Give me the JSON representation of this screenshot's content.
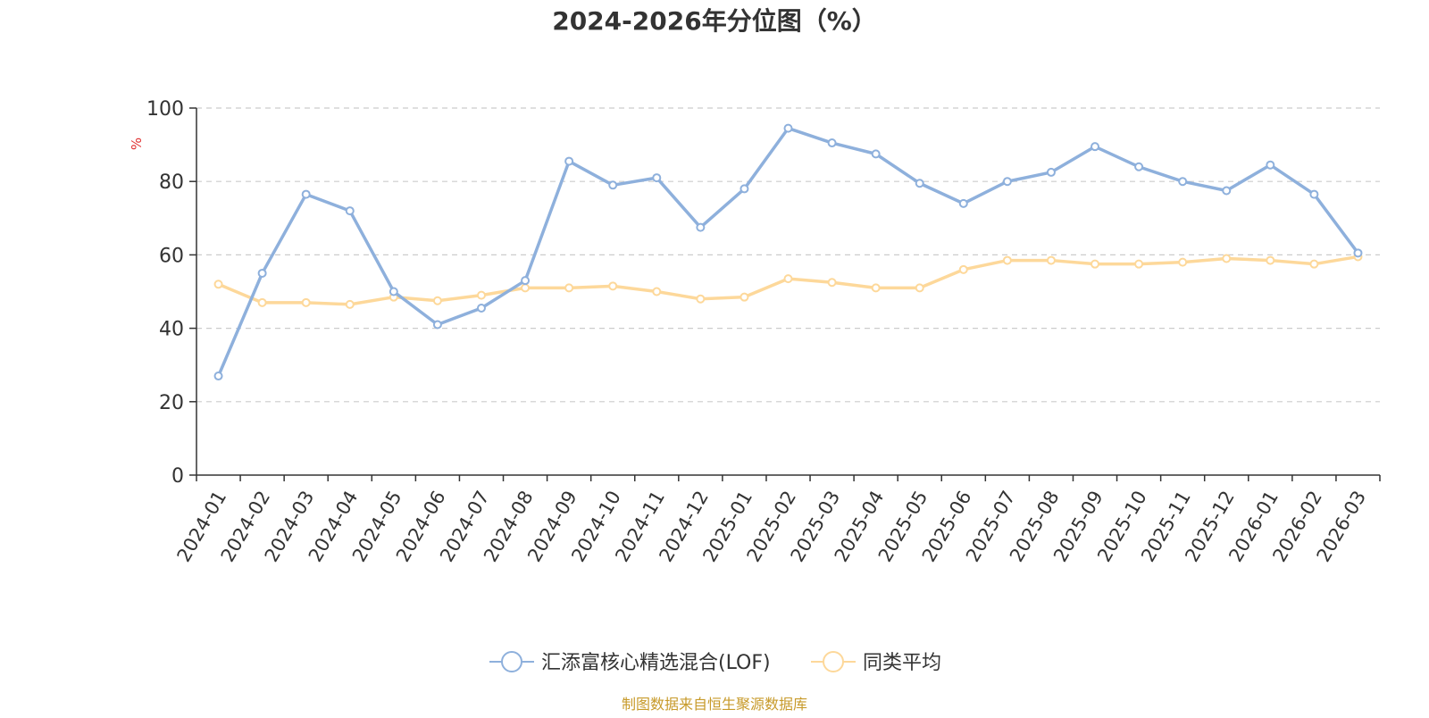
{
  "chart_data": {
    "type": "line",
    "title": "2024-2026年分位图（%）",
    "ylabel": "%",
    "ylim": [
      0,
      100
    ],
    "yticks": [
      0,
      20,
      40,
      60,
      80,
      100
    ],
    "grid": true,
    "legend_position": "bottom",
    "categories": [
      "2024-01",
      "2024-02",
      "2024-03",
      "2024-04",
      "2024-05",
      "2024-06",
      "2024-07",
      "2024-08",
      "2024-09",
      "2024-10",
      "2024-11",
      "2024-12",
      "2025-01",
      "2025-02",
      "2025-03",
      "2025-04",
      "2025-05",
      "2025-06",
      "2025-07",
      "2025-08",
      "2025-09",
      "2025-10",
      "2025-11",
      "2025-12",
      "2026-01",
      "2026-02",
      "2026-03"
    ],
    "series": [
      {
        "name": "汇添富核心精选混合(LOF)",
        "color": "#8eb0dc",
        "values": [
          27.0,
          55.0,
          76.5,
          72.0,
          50.0,
          41.0,
          45.5,
          53.0,
          85.5,
          79.0,
          81.0,
          67.5,
          78.0,
          94.5,
          90.5,
          87.5,
          79.5,
          74.0,
          80.0,
          82.5,
          89.5,
          84.0,
          80.0,
          77.5,
          84.5,
          76.5,
          60.5
        ]
      },
      {
        "name": "同类平均",
        "color": "#fdd89a",
        "values": [
          52.0,
          47.0,
          47.0,
          46.5,
          48.5,
          47.5,
          49.0,
          51.0,
          51.0,
          51.5,
          50.0,
          48.0,
          48.5,
          53.5,
          52.5,
          51.0,
          51.0,
          56.0,
          58.5,
          58.5,
          57.5,
          57.5,
          58.0,
          59.0,
          58.5,
          57.5,
          59.5
        ]
      }
    ],
    "source_note": "制图数据来自恒生聚源数据库"
  },
  "colors": {
    "axis": "#333333",
    "grid": "#cccccc",
    "ylabel": "#e03030",
    "source": "#c79a2a",
    "title": "#333333"
  }
}
